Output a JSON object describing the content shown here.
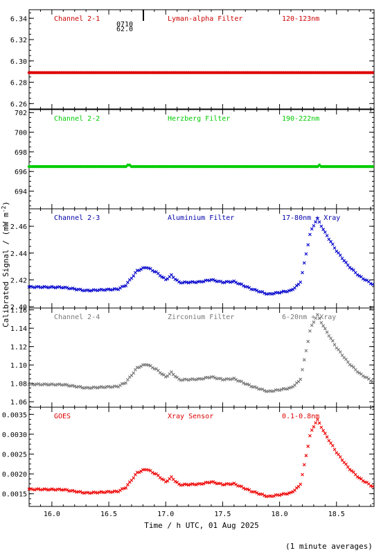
{
  "page": {
    "ylabel": "Calibrated Signal / (mW m",
    "ylabel_sup": "-2",
    "ylabel_end": ")",
    "xlabel": "Time / h UTC, 01 Aug 2025",
    "footnote": "(1 minute averages)",
    "top_annotation": [
      "0710",
      "62.0"
    ]
  },
  "chart_data": {
    "type": "scatter",
    "xlim": [
      15.8,
      18.83
    ],
    "x_ticks": [
      16.0,
      16.5,
      17.0,
      17.5,
      18.0,
      18.5
    ],
    "x_tick_labels": [
      "16.0",
      "16.5",
      "17.0",
      "17.5",
      "18.0",
      "18.5"
    ],
    "panels": [
      {
        "channel": "Channel 2-1",
        "filter": "Lyman-alpha Filter",
        "band": "120-123nm",
        "color": "#dd0000",
        "label_color": "#cc0000",
        "marker": "dot",
        "ylim": [
          6.255,
          6.348
        ],
        "yticks": [
          6.26,
          6.28,
          6.3,
          6.32,
          6.34
        ],
        "ytick_labels": [
          "6.26",
          "6.28",
          "6.30",
          "6.32",
          "6.34"
        ],
        "profile": "flat",
        "flat_value": 6.289
      },
      {
        "channel": "Channel 2-2",
        "filter": "Herzberg Filter",
        "band": "190-222nm",
        "color": "#00cc00",
        "label_color": "#00cc00",
        "marker": "dot",
        "ylim": [
          692.2,
          702.3
        ],
        "yticks": [
          694,
          696,
          698,
          700,
          702
        ],
        "ytick_labels": [
          "694",
          "696",
          "698",
          "700",
          "702"
        ],
        "profile": "flat",
        "flat_value": 696.5
      },
      {
        "channel": "Channel 2-3",
        "filter": "Aluminium Filter",
        "band": "17-80nm + Xray",
        "color": "#0000cc",
        "label_color": "#0000aa",
        "marker": "x",
        "ylim": [
          2.399,
          2.473
        ],
        "yticks": [
          2.4,
          2.42,
          2.44,
          2.46
        ],
        "ytick_labels": [
          "2.40",
          "2.42",
          "2.44",
          "2.46"
        ],
        "profile": "xray",
        "base": 2.412,
        "amp": 0.0027,
        "k": 1.0
      },
      {
        "channel": "Channel 2-4",
        "filter": "Zirconium Filter",
        "band": "6-20nm + Xray",
        "color": "#777777",
        "label_color": "#777777",
        "marker": "x",
        "ylim": [
          1.054,
          1.162
        ],
        "yticks": [
          1.06,
          1.08,
          1.1,
          1.12,
          1.14,
          1.16
        ],
        "ytick_labels": [
          "1.06",
          "1.08",
          "1.10",
          "1.12",
          "1.14",
          "1.16"
        ],
        "profile": "xray",
        "base": 1.075,
        "amp": 0.004,
        "k": 1.0
      },
      {
        "channel": "GOES",
        "filter": "Xray Sensor",
        "band": "0.1-0.8nm",
        "color": "#ee0000",
        "label_color": "#dd0000",
        "marker": "x",
        "ylim": [
          0.00118,
          0.00368
        ],
        "yticks": [
          0.0015,
          0.002,
          0.0025,
          0.003,
          0.0035
        ],
        "ytick_labels": [
          "0.0015",
          "0.0020",
          "0.0025",
          "0.0030",
          "0.0035"
        ],
        "profile": "xray",
        "base": 0.00152,
        "amp": 9.3e-05,
        "k": 1.0
      }
    ],
    "xray_shape_points": [
      [
        15.8,
        1.0
      ],
      [
        16.1,
        0.9
      ],
      [
        16.3,
        0.0
      ],
      [
        16.58,
        0.4
      ],
      [
        16.65,
        1.5
      ],
      [
        16.75,
        5.5
      ],
      [
        16.83,
        6.5
      ],
      [
        16.92,
        5.0
      ],
      [
        17.0,
        3.0
      ],
      [
        17.05,
        4.2
      ],
      [
        17.12,
        2.2
      ],
      [
        17.3,
        2.4
      ],
      [
        17.4,
        3.0
      ],
      [
        17.5,
        2.3
      ],
      [
        17.6,
        2.5
      ],
      [
        17.75,
        0.5
      ],
      [
        17.9,
        -1.0
      ],
      [
        18.1,
        0.0
      ],
      [
        18.18,
        2.0
      ],
      [
        18.22,
        8.0
      ],
      [
        18.27,
        16.0
      ],
      [
        18.33,
        20.0
      ],
      [
        18.4,
        16.0
      ],
      [
        18.5,
        11.0
      ],
      [
        18.6,
        7.0
      ],
      [
        18.7,
        4.0
      ],
      [
        18.83,
        1.5
      ]
    ]
  }
}
